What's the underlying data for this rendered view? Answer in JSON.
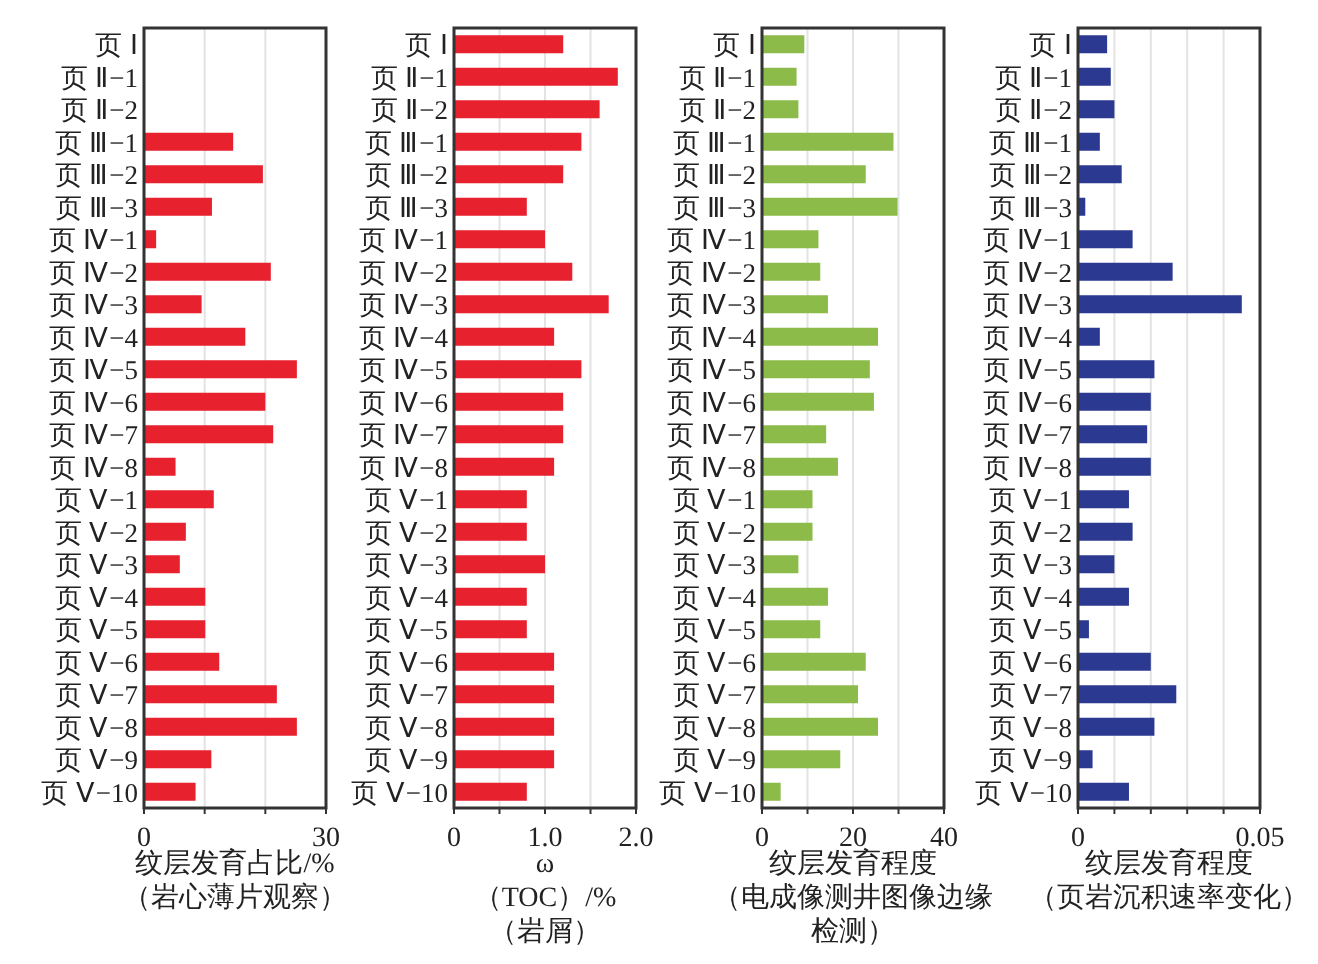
{
  "chart_data": [
    {
      "type": "bar",
      "orientation": "horizontal",
      "grid": "x",
      "color": "#e8212e",
      "xlabel": "纹层发育占比/%（岩心薄片观察）",
      "xlim": [
        0,
        30
      ],
      "xticks": [
        0,
        {
          "value": 10,
          "label": null
        },
        {
          "value": 20,
          "label": null
        },
        30
      ],
      "categories": [
        "页 Ⅰ",
        "页 Ⅱ−1",
        "页 Ⅱ−2",
        "页 Ⅲ−1",
        "页 Ⅲ−2",
        "页 Ⅲ−3",
        "页 Ⅳ−1",
        "页 Ⅳ−2",
        "页 Ⅳ−3",
        "页 Ⅳ−4",
        "页 Ⅳ−5",
        "页 Ⅳ−6",
        "页 Ⅳ−7",
        "页 Ⅳ−8",
        "页 Ⅴ−1",
        "页 Ⅴ−2",
        "页 Ⅴ−3",
        "页 Ⅴ−4",
        "页 Ⅴ−5",
        "页 Ⅴ−6",
        "页 Ⅴ−7",
        "页 Ⅴ−8",
        "页 Ⅴ−9",
        "页 Ⅴ−10"
      ],
      "values": [
        null,
        null,
        null,
        14.7,
        19.6,
        11.2,
        2.0,
        20.9,
        9.5,
        16.7,
        25.2,
        20.0,
        21.3,
        5.2,
        11.5,
        6.9,
        5.9,
        10.1,
        10.1,
        12.4,
        21.9,
        25.2,
        11.1,
        8.5
      ]
    },
    {
      "type": "bar",
      "orientation": "horizontal",
      "grid": "x",
      "color": "#e8212e",
      "xlabel": "ω（TOC）/%（岩屑）",
      "xlim": [
        0,
        2.0
      ],
      "xticks": [
        0,
        {
          "value": 0.5,
          "label": null
        },
        {
          "value": 1.0,
          "label": "1.0"
        },
        {
          "value": 1.5,
          "label": null
        },
        {
          "value": 2.0,
          "label": "2.0"
        }
      ],
      "categories": [
        "页 Ⅰ",
        "页 Ⅱ−1",
        "页 Ⅱ−2",
        "页 Ⅲ−1",
        "页 Ⅲ−2",
        "页 Ⅲ−3",
        "页 Ⅳ−1",
        "页 Ⅳ−2",
        "页 Ⅳ−3",
        "页 Ⅳ−4",
        "页 Ⅳ−5",
        "页 Ⅳ−6",
        "页 Ⅳ−7",
        "页 Ⅳ−8",
        "页 Ⅴ−1",
        "页 Ⅴ−2",
        "页 Ⅴ−3",
        "页 Ⅴ−4",
        "页 Ⅴ−5",
        "页 Ⅴ−6",
        "页 Ⅴ−7",
        "页 Ⅴ−8",
        "页 Ⅴ−9",
        "页 Ⅴ−10"
      ],
      "values": [
        1.2,
        1.8,
        1.6,
        1.4,
        1.2,
        0.8,
        1.0,
        1.3,
        1.7,
        1.1,
        1.4,
        1.2,
        1.2,
        1.1,
        0.8,
        0.8,
        1.0,
        0.8,
        0.8,
        1.1,
        1.1,
        1.1,
        1.1,
        0.8
      ]
    },
    {
      "type": "bar",
      "orientation": "horizontal",
      "grid": "x",
      "color": "#8dbb4a",
      "xlabel": "纹层发育程度（电成像测井图像边缘检测）",
      "xlim": [
        0,
        40
      ],
      "xticks": [
        0,
        {
          "value": 10,
          "label": null
        },
        20,
        {
          "value": 30,
          "label": null
        },
        40
      ],
      "categories": [
        "页 Ⅰ",
        "页 Ⅱ−1",
        "页 Ⅱ−2",
        "页 Ⅲ−1",
        "页 Ⅲ−2",
        "页 Ⅲ−3",
        "页 Ⅳ−1",
        "页 Ⅳ−2",
        "页 Ⅳ−3",
        "页 Ⅳ−4",
        "页 Ⅳ−5",
        "页 Ⅳ−6",
        "页 Ⅳ−7",
        "页 Ⅳ−8",
        "页 Ⅴ−1",
        "页 Ⅴ−2",
        "页 Ⅴ−3",
        "页 Ⅴ−4",
        "页 Ⅴ−5",
        "页 Ⅴ−6",
        "页 Ⅴ−7",
        "页 Ⅴ−8",
        "页 Ⅴ−9",
        "页 Ⅴ−10"
      ],
      "values": [
        9.3,
        7.6,
        8.0,
        28.9,
        22.8,
        29.8,
        12.4,
        12.8,
        14.5,
        25.5,
        23.7,
        24.6,
        14.1,
        16.7,
        11.1,
        11.1,
        8.0,
        14.5,
        12.8,
        22.8,
        21.1,
        25.5,
        17.2,
        4.1
      ]
    },
    {
      "type": "bar",
      "orientation": "horizontal",
      "grid": "x",
      "color": "#2b3990",
      "xlabel": "纹层发育程度（页岩沉积速率变化）",
      "xlim": [
        0,
        0.05
      ],
      "xticks": [
        0,
        {
          "value": 0.01,
          "label": null
        },
        {
          "value": 0.02,
          "label": null
        },
        {
          "value": 0.03,
          "label": null
        },
        {
          "value": 0.04,
          "label": null
        },
        0.05
      ],
      "categories": [
        "页 Ⅰ",
        "页 Ⅱ−1",
        "页 Ⅱ−2",
        "页 Ⅲ−1",
        "页 Ⅲ−2",
        "页 Ⅲ−3",
        "页 Ⅳ−1",
        "页 Ⅳ−2",
        "页 Ⅳ−3",
        "页 Ⅳ−4",
        "页 Ⅳ−5",
        "页 Ⅳ−6",
        "页 Ⅳ−7",
        "页 Ⅳ−8",
        "页 Ⅴ−1",
        "页 Ⅴ−2",
        "页 Ⅴ−3",
        "页 Ⅴ−4",
        "页 Ⅴ−5",
        "页 Ⅴ−6",
        "页 Ⅴ−7",
        "页 Ⅴ−8",
        "页 Ⅴ−9",
        "页 Ⅴ−10"
      ],
      "values": [
        0.008,
        0.009,
        0.01,
        0.006,
        0.012,
        0.002,
        0.015,
        0.026,
        0.045,
        0.006,
        0.021,
        0.02,
        0.019,
        0.02,
        0.014,
        0.015,
        0.01,
        0.014,
        0.003,
        0.02,
        0.027,
        0.021,
        0.004,
        0.014
      ]
    }
  ]
}
